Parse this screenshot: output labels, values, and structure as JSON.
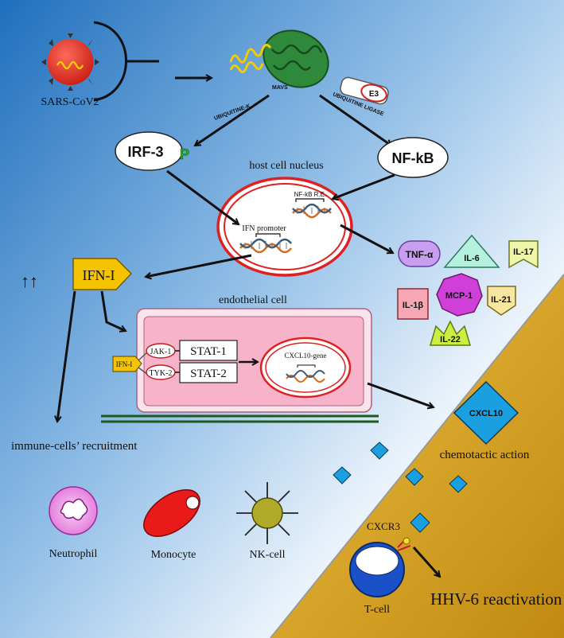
{
  "virus": {
    "label": "SARS-CoV2"
  },
  "mito": {
    "label": "MAVS"
  },
  "ubiquitine_k": {
    "label": "UBIQUITINE-K"
  },
  "ubiquitine_ligase": {
    "label": "UBIQUITINE LIGASE",
    "e3": "E3"
  },
  "irf3": {
    "label": "IRF-3",
    "phospho": "P"
  },
  "nfkb": {
    "label": "NF-kB"
  },
  "nucleus": {
    "title": "host cell nucleus",
    "nfkb_re": "NF-kB R.E.",
    "ifn_promoter": "IFN promoter"
  },
  "ifn": {
    "arrows": "↑↑",
    "label": "IFN-I"
  },
  "cytokines": {
    "tnf": "TNF-α",
    "il6": "IL-6",
    "il17": "IL-17",
    "il1b": "IL-1β",
    "mcp1": "MCP-1",
    "il21": "IL-21",
    "il22": "IL-22"
  },
  "endothelial": {
    "title": "endothelial cell",
    "receptor": "IFN-I",
    "jak1": "JAK-1",
    "tyk2": "TYK-2",
    "stat1": "STAT-1",
    "stat2": "STAT-2",
    "gene": "CXCL10-gene"
  },
  "cxcl10": {
    "label": "CXCL10",
    "action": "chemotactic action"
  },
  "recruitment": {
    "label": "immune-cells’ recruitment"
  },
  "cells": {
    "neutrophil": "Neutrophil",
    "monocyte": "Monocyte",
    "nk": "NK-cell"
  },
  "tcell": {
    "receptor": "CXCR3",
    "label": "T-cell",
    "outcome": "HHV-6 reactivation"
  },
  "colors": {
    "bg_blue": "#2f7fc8",
    "bg_gold": "#d4a017",
    "ifn_yellow": "#f5c400",
    "cxcl10_blue": "#1a9fe0",
    "endothelial_pink": "#f7b3c9",
    "nucleus_red": "#e02020"
  }
}
